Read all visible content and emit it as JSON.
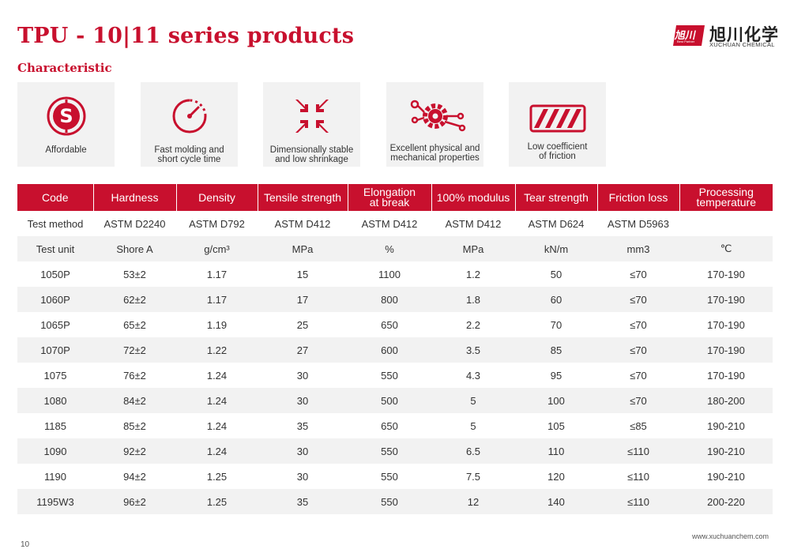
{
  "page": {
    "title": "TPU - 10|11 series products",
    "section": "Characteristic",
    "footer_url": "www.xuchuanchem.com",
    "page_number": "10"
  },
  "brand": {
    "logo_mark": "旭川",
    "logo_mark_sub": "Best Partner",
    "name_cn": "旭川化学",
    "name_en": "XUCHUAN CHEMICAL",
    "accent_color": "#c8102e"
  },
  "features": [
    {
      "icon": "dollar-coin-icon",
      "label": "Affordable"
    },
    {
      "icon": "stopwatch-icon",
      "label": "Fast molding and\nshort cycle time"
    },
    {
      "icon": "shrink-arrows-icon",
      "label": "Dimensionally stable\nand low shrinkage"
    },
    {
      "icon": "gears-icon",
      "label": "Excellent physical and\nmechanical properties"
    },
    {
      "icon": "hazard-stripes-icon",
      "label": "Low coefficient\nof friction"
    }
  ],
  "table": {
    "headers": [
      "Code",
      "Hardness",
      "Density",
      "Tensile strength",
      "Elongation\nat break",
      "100% modulus",
      "Tear strength",
      "Friction loss",
      "Processing\ntemperature"
    ],
    "meta_rows": [
      [
        "Test method",
        "ASTM D2240",
        "ASTM D792",
        "ASTM D412",
        "ASTM D412",
        "ASTM D412",
        "ASTM D624",
        "ASTM D5963",
        ""
      ],
      [
        "Test unit",
        "Shore A",
        "g/cm³",
        "MPa",
        "%",
        "MPa",
        "kN/m",
        "mm3",
        "℃"
      ]
    ],
    "rows": [
      [
        "1050P",
        "53±2",
        "1.17",
        "15",
        "1100",
        "1.2",
        "50",
        "≤70",
        "170-190"
      ],
      [
        "1060P",
        "62±2",
        "1.17",
        "17",
        "800",
        "1.8",
        "60",
        "≤70",
        "170-190"
      ],
      [
        "1065P",
        "65±2",
        "1.19",
        "25",
        "650",
        "2.2",
        "70",
        "≤70",
        "170-190"
      ],
      [
        "1070P",
        "72±2",
        "1.22",
        "27",
        "600",
        "3.5",
        "85",
        "≤70",
        "170-190"
      ],
      [
        "1075",
        "76±2",
        "1.24",
        "30",
        "550",
        "4.3",
        "95",
        "≤70",
        "170-190"
      ],
      [
        "1080",
        "84±2",
        "1.24",
        "30",
        "500",
        "5",
        "100",
        "≤70",
        "180-200"
      ],
      [
        "1185",
        "85±2",
        "1.24",
        "35",
        "650",
        "5",
        "105",
        "≤85",
        "190-210"
      ],
      [
        "1090",
        "92±2",
        "1.24",
        "30",
        "550",
        "6.5",
        "110",
        "≤110",
        "190-210"
      ],
      [
        "1190",
        "94±2",
        "1.25",
        "30",
        "550",
        "7.5",
        "120",
        "≤110",
        "190-210"
      ],
      [
        "1195W3",
        "96±2",
        "1.25",
        "35",
        "550",
        "12",
        "140",
        "≤110",
        "200-220"
      ]
    ]
  }
}
